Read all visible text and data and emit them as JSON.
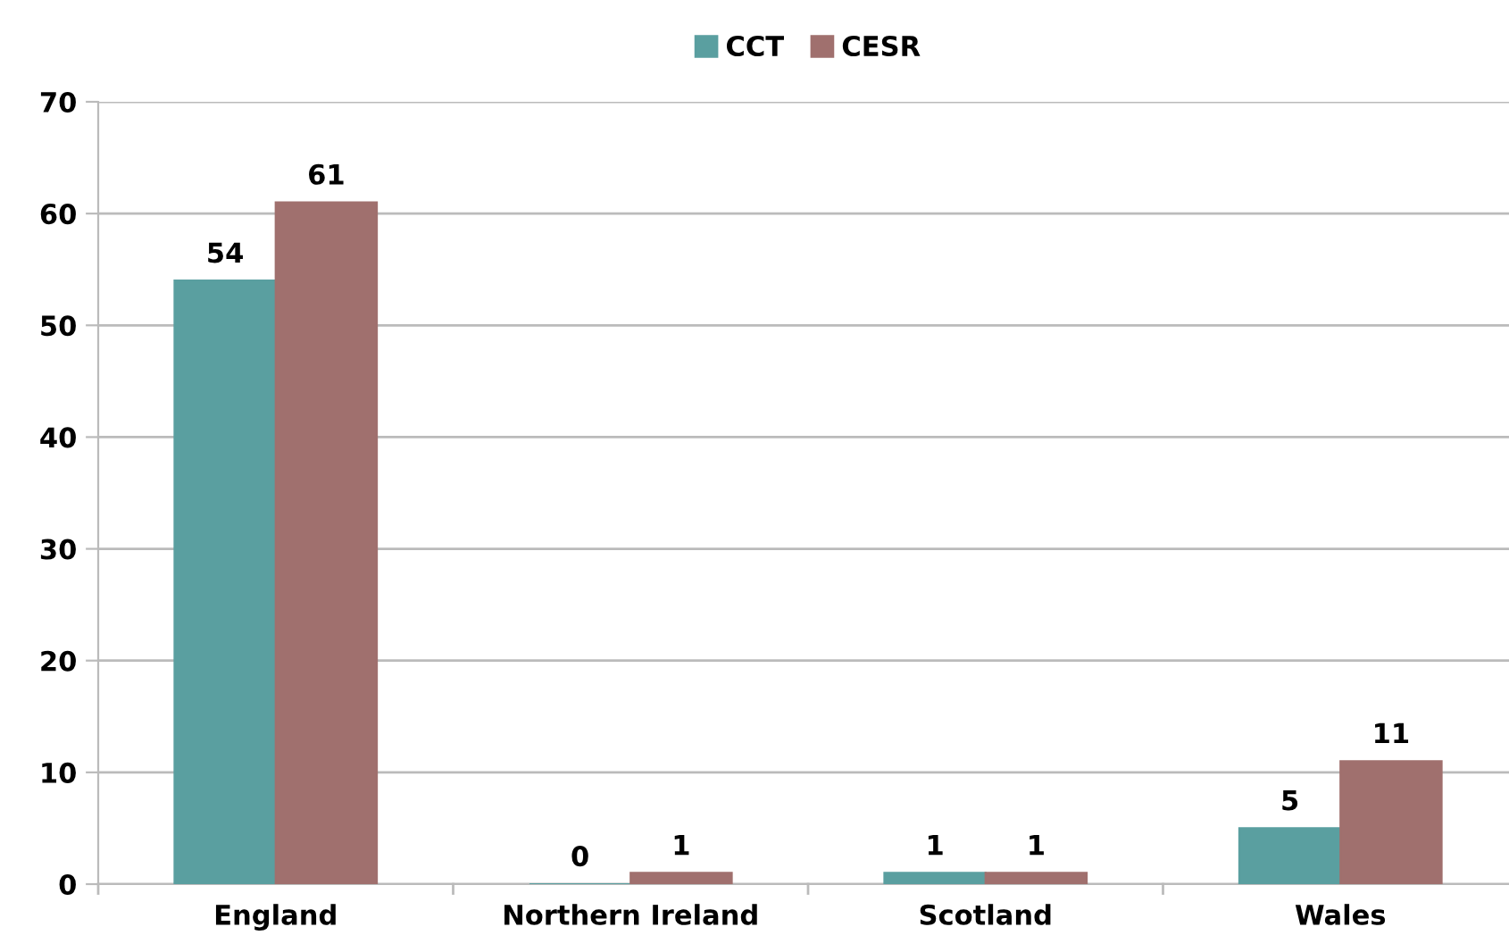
{
  "chart_data": {
    "type": "bar",
    "categories": [
      "England",
      "Northern Ireland",
      "Scotland",
      "Wales"
    ],
    "series": [
      {
        "name": "CCT",
        "color": "#5a9fa0",
        "values": [
          54,
          0,
          1,
          5
        ]
      },
      {
        "name": "CESR",
        "color": "#a0706e",
        "values": [
          61,
          1,
          1,
          11
        ]
      }
    ],
    "ylim": [
      0,
      70
    ],
    "yticks": [
      0,
      10,
      20,
      30,
      40,
      50,
      60,
      70
    ],
    "grid": "y",
    "legend": "top",
    "data_labels": true
  }
}
